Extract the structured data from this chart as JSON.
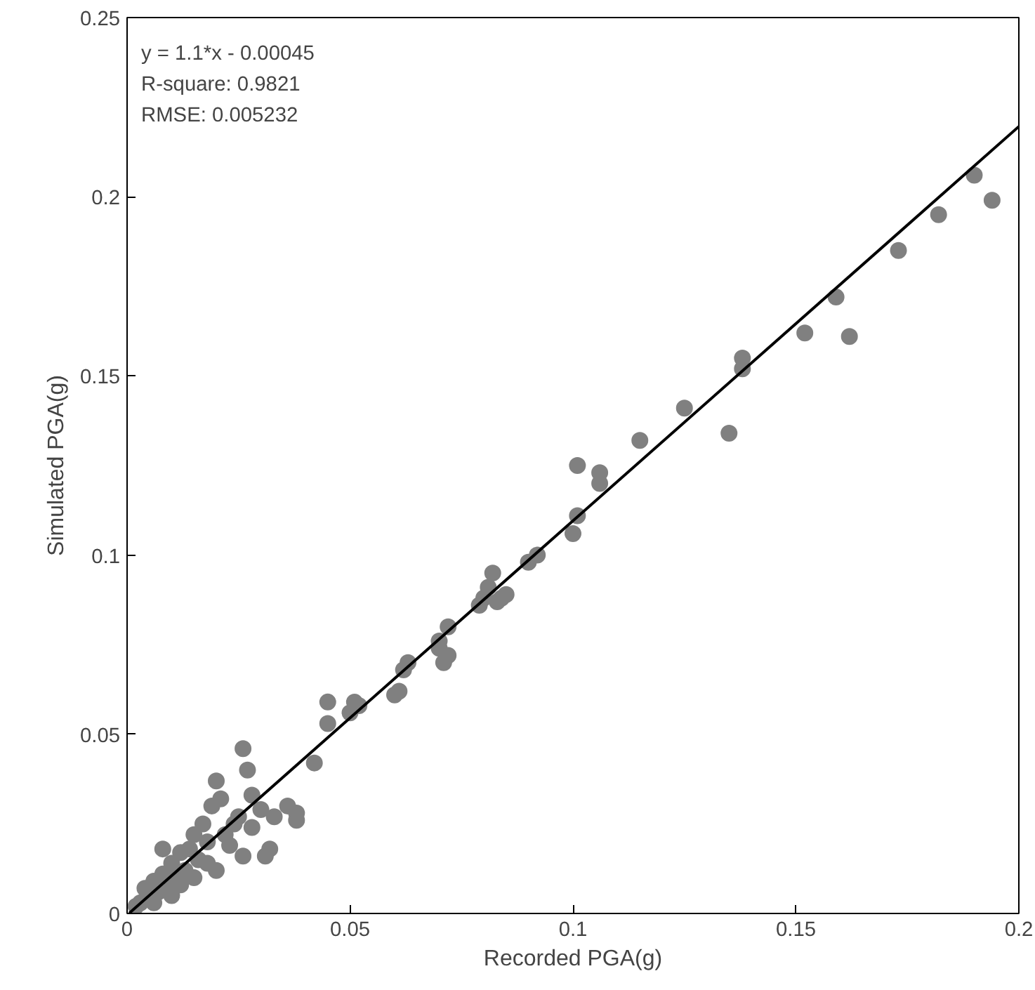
{
  "chart_data": {
    "type": "scatter",
    "xlabel": "Recorded PGA(g)",
    "ylabel": "Simulated PGA(g)",
    "xlim": [
      0,
      0.2
    ],
    "ylim": [
      0,
      0.25
    ],
    "xticks": [
      0,
      0.05,
      0.1,
      0.15,
      0.2
    ],
    "yticks": [
      0,
      0.05,
      0.1,
      0.15,
      0.2,
      0.25
    ],
    "grid": false,
    "annotations": [
      "y = 1.1*x - 0.00045",
      "R-square: 0.9821",
      "RMSE: 0.005232"
    ],
    "series": [
      {
        "color": "#808080",
        "marker": "circle",
        "x": [
          0.194,
          0.19,
          0.182,
          0.173,
          0.162,
          0.159,
          0.152,
          0.138,
          0.138,
          0.135,
          0.125,
          0.115,
          0.106,
          0.106,
          0.101,
          0.101,
          0.1,
          0.092,
          0.09,
          0.085,
          0.084,
          0.083,
          0.082,
          0.081,
          0.08,
          0.079,
          0.072,
          0.072,
          0.071,
          0.07,
          0.07,
          0.063,
          0.062,
          0.061,
          0.06,
          0.052,
          0.051,
          0.05,
          0.045,
          0.045,
          0.042,
          0.038,
          0.038,
          0.036,
          0.032,
          0.031,
          0.03,
          0.028,
          0.027,
          0.026,
          0.025,
          0.024,
          0.022,
          0.021,
          0.02,
          0.019,
          0.018,
          0.017,
          0.016,
          0.015,
          0.014,
          0.013,
          0.012,
          0.011,
          0.01,
          0.009,
          0.008,
          0.008,
          0.007,
          0.006,
          0.004,
          0.003,
          0.002,
          0.012,
          0.01,
          0.006,
          0.015,
          0.018,
          0.023,
          0.028,
          0.033,
          0.026,
          0.02
        ],
        "values": [
          0.199,
          0.206,
          0.195,
          0.185,
          0.161,
          0.172,
          0.162,
          0.155,
          0.152,
          0.134,
          0.141,
          0.132,
          0.123,
          0.12,
          0.125,
          0.111,
          0.106,
          0.1,
          0.098,
          0.089,
          0.088,
          0.087,
          0.095,
          0.091,
          0.088,
          0.086,
          0.08,
          0.072,
          0.07,
          0.076,
          0.074,
          0.07,
          0.068,
          0.062,
          0.061,
          0.058,
          0.059,
          0.056,
          0.059,
          0.053,
          0.042,
          0.028,
          0.026,
          0.03,
          0.018,
          0.016,
          0.029,
          0.033,
          0.04,
          0.046,
          0.027,
          0.025,
          0.022,
          0.032,
          0.037,
          0.03,
          0.02,
          0.025,
          0.015,
          0.022,
          0.018,
          0.012,
          0.017,
          0.01,
          0.014,
          0.008,
          0.018,
          0.011,
          0.006,
          0.009,
          0.007,
          0.003,
          0.002,
          0.008,
          0.005,
          0.003,
          0.01,
          0.014,
          0.019,
          0.024,
          0.027,
          0.016,
          0.012
        ]
      },
      {
        "type": "line",
        "color": "#000000",
        "x": [
          0.0005,
          0.2
        ],
        "values": [
          0.0001,
          0.2196
        ]
      }
    ]
  }
}
